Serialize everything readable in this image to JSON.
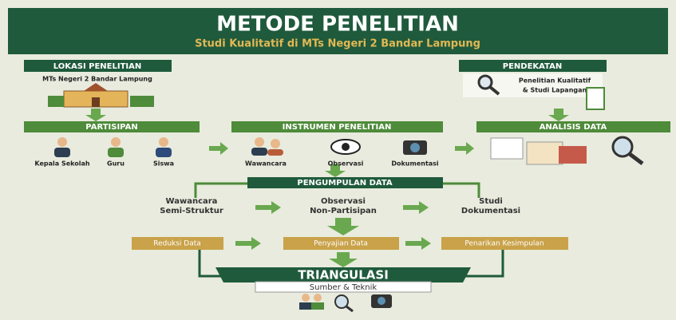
{
  "header": {
    "title": "METODE PENELITIAN",
    "subtitle": "Studi Kualitatif di MTs Negeri 2 Bandar Lampung"
  },
  "lokasi": {
    "title": "LOKASI PENELITIAN",
    "text": "MTs Negeri 2 Bandar Lampung"
  },
  "pendekatan": {
    "title": "PENDEKATAN",
    "text": [
      "Penelitian Kualitatif",
      "& Studi Lapangan"
    ]
  },
  "partisipan": {
    "title": "PARTISIPAN",
    "items": [
      "Kepala Sekolah",
      "Guru",
      "Siswa"
    ]
  },
  "instrumen": {
    "title": "INSTRUMEN PENELITIAN",
    "items": [
      "Wawancara",
      "Observasi",
      "Dokumentasi"
    ]
  },
  "analisis": {
    "title": "ANALISIS DATA"
  },
  "pengumpulan": {
    "title": "PENGUMPULAN DATA",
    "items": [
      [
        "Wawancara",
        "Semi-Struktur"
      ],
      [
        "Observasi",
        "Non-Partisipan"
      ],
      [
        "Studi",
        "Dokumentasi"
      ]
    ]
  },
  "analysis_steps": [
    "Reduksi Data",
    "Penyajian Data",
    "Penarikan Kesimpulan"
  ],
  "triangulasi": {
    "title": "TRIANGULASI",
    "subtitle": "Sumber & Teknik"
  }
}
